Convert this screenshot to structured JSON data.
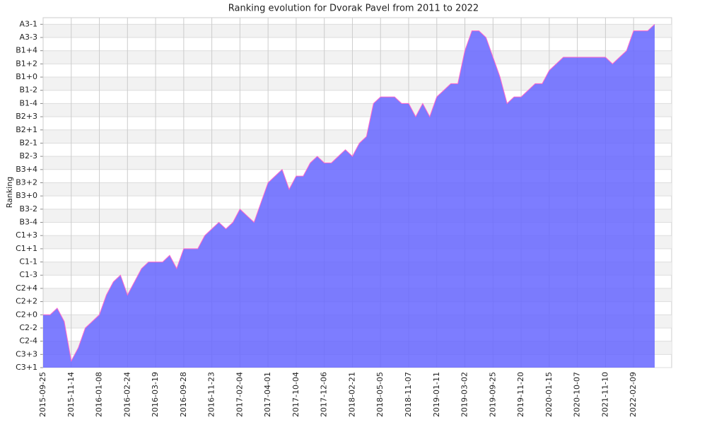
{
  "chart_data": {
    "type": "area",
    "title": "Ranking evolution for Dvorak Pavel from 2011 to 2022",
    "y_label": "Ranking",
    "categories": [
      "2015-09-25",
      null,
      null,
      null,
      "2015-11-14",
      null,
      null,
      null,
      "2016-01-08",
      null,
      null,
      null,
      "2016-02-24",
      null,
      null,
      null,
      "2016-03-19",
      null,
      null,
      null,
      "2016-09-28",
      null,
      null,
      null,
      "2016-11-23",
      null,
      null,
      null,
      "2017-02-04",
      null,
      null,
      null,
      "2017-04-01",
      null,
      null,
      null,
      "2017-10-04",
      null,
      null,
      null,
      "2017-12-06",
      null,
      null,
      null,
      "2018-02-21",
      null,
      null,
      null,
      "2018-05-05",
      null,
      null,
      null,
      "2018-11-07",
      null,
      null,
      null,
      "2019-01-11",
      null,
      null,
      null,
      "2019-03-02",
      null,
      null,
      null,
      "2019-09-25",
      null,
      null,
      null,
      "2019-11-20",
      null,
      null,
      null,
      "2020-01-15",
      null,
      null,
      null,
      "2020-10-07",
      null,
      null,
      null,
      "2021-11-10",
      null,
      null,
      null,
      "2022-02-09",
      null,
      null,
      null
    ],
    "values": [
      8,
      8,
      9,
      7,
      1,
      3,
      6,
      7,
      8,
      11,
      13,
      14,
      11,
      13,
      15,
      16,
      16,
      16,
      17,
      15,
      18,
      18,
      18,
      20,
      21,
      22,
      21,
      22,
      24,
      23,
      22,
      25,
      28,
      29,
      30,
      27,
      29,
      29,
      31,
      32,
      31,
      31,
      32,
      33,
      32,
      34,
      35,
      40,
      41,
      41,
      41,
      40,
      40,
      38,
      40,
      38,
      41,
      42,
      43,
      43,
      48,
      51,
      51,
      50,
      47,
      44,
      40,
      41,
      41,
      42,
      43,
      43,
      45,
      46,
      47,
      47,
      47,
      47,
      47,
      47,
      47,
      46,
      47,
      48,
      51,
      51,
      51,
      52
    ],
    "color": "#6666ff",
    "line_color": "#ff66cc",
    "ylim": [
      0,
      53
    ],
    "yticks": [
      {
        "value": 0,
        "label": "C3+1"
      },
      {
        "value": 2,
        "label": "C3+3"
      },
      {
        "value": 4,
        "label": "C2-4"
      },
      {
        "value": 6,
        "label": "C2-2"
      },
      {
        "value": 8,
        "label": "C2+0"
      },
      {
        "value": 10,
        "label": "C2+2"
      },
      {
        "value": 12,
        "label": "C2+4"
      },
      {
        "value": 14,
        "label": "C1-3"
      },
      {
        "value": 16,
        "label": "C1-1"
      },
      {
        "value": 18,
        "label": "C1+1"
      },
      {
        "value": 20,
        "label": "C1+3"
      },
      {
        "value": 22,
        "label": "B3-4"
      },
      {
        "value": 24,
        "label": "B3-2"
      },
      {
        "value": 26,
        "label": "B3+0"
      },
      {
        "value": 28,
        "label": "B3+2"
      },
      {
        "value": 30,
        "label": "B3+4"
      },
      {
        "value": 32,
        "label": "B2-3"
      },
      {
        "value": 34,
        "label": "B2-1"
      },
      {
        "value": 36,
        "label": "B2+1"
      },
      {
        "value": 38,
        "label": "B2+3"
      },
      {
        "value": 40,
        "label": "B1-4"
      },
      {
        "value": 42,
        "label": "B1-2"
      },
      {
        "value": 44,
        "label": "B1+0"
      },
      {
        "value": 46,
        "label": "B1+2"
      },
      {
        "value": 48,
        "label": "B1+4"
      },
      {
        "value": 50,
        "label": "A3-3"
      },
      {
        "value": 52,
        "label": "A3-1"
      }
    ],
    "grid": true
  }
}
